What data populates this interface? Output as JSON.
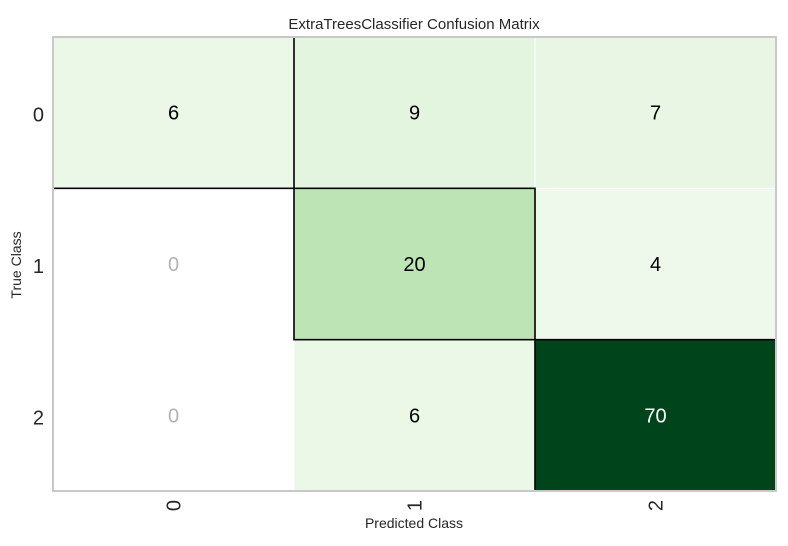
{
  "chart_data": {
    "type": "heatmap",
    "title": "ExtraTreesClassifier Confusion Matrix",
    "xlabel": "Predicted Class",
    "ylabel": "True Class",
    "x_categories": [
      "0",
      "1",
      "2"
    ],
    "y_categories": [
      "0",
      "1",
      "2"
    ],
    "values": [
      [
        6,
        9,
        7
      ],
      [
        0,
        20,
        4
      ],
      [
        0,
        6,
        70
      ]
    ],
    "colormap": "Greens",
    "zero_cell_color": "#ffffff",
    "zero_text_color": "#b3b3b3",
    "dark_text_color": "#000000",
    "light_text_color": "#ffffff",
    "frame_color": "#c8c8c8",
    "highlight_border_color": "#000000",
    "highlighted_cells": "diagonal",
    "grid": false
  }
}
